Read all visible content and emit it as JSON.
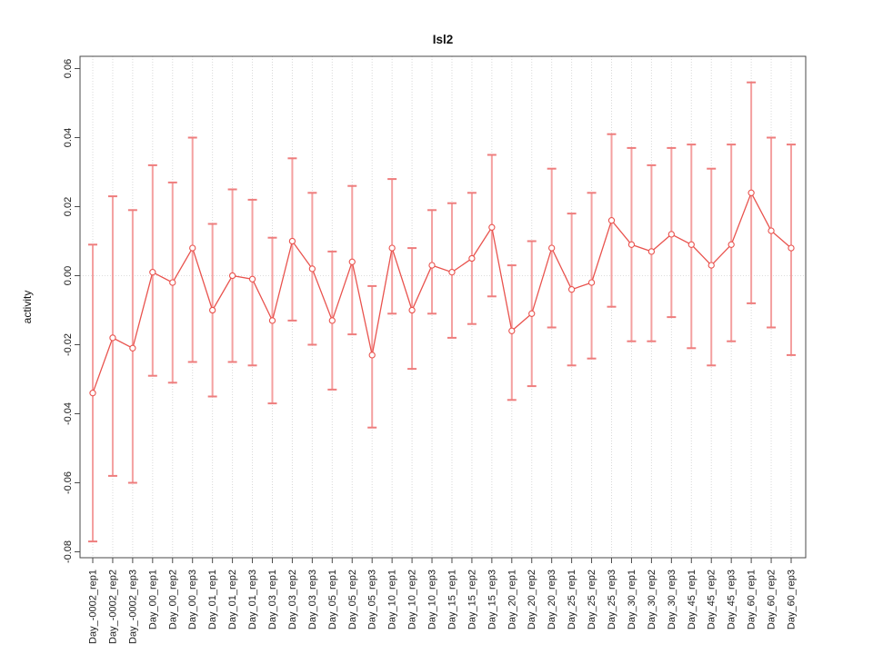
{
  "figure": {
    "title": "Isl2",
    "y_axis_label": "activity"
  },
  "chart_data": {
    "type": "scatter",
    "subtype": "points-with-error-bars-and-connecting-line",
    "title": "Isl2",
    "xlabel": "",
    "ylabel": "activity",
    "ylim": [
      -0.08,
      0.06
    ],
    "ytick_labels": [
      "-0.08",
      "-0.06",
      "-0.04",
      "-0.02",
      "0.00",
      "0.02",
      "0.04",
      "0.06"
    ],
    "grid": "vertical dotted gridline at every category; dotted horizontal reference line at 0.00",
    "legend": "none",
    "categories": [
      "Day_-0002_rep1",
      "Day_-0002_rep2",
      "Day_-0002_rep3",
      "Day_00_rep1",
      "Day_00_rep2",
      "Day_00_rep3",
      "Day_01_rep1",
      "Day_01_rep2",
      "Day_01_rep3",
      "Day_03_rep1",
      "Day_03_rep2",
      "Day_03_rep3",
      "Day_05_rep1",
      "Day_05_rep2",
      "Day_05_rep3",
      "Day_10_rep1",
      "Day_10_rep2",
      "Day_10_rep3",
      "Day_15_rep1",
      "Day_15_rep2",
      "Day_15_rep3",
      "Day_20_rep1",
      "Day_20_rep2",
      "Day_20_rep3",
      "Day_25_rep1",
      "Day_25_rep2",
      "Day_25_rep3",
      "Day_30_rep1",
      "Day_30_rep2",
      "Day_30_rep3",
      "Day_45_rep1",
      "Day_45_rep2",
      "Day_45_rep3",
      "Day_60_rep1",
      "Day_60_rep2",
      "Day_60_rep3"
    ],
    "series": [
      {
        "name": "activity",
        "values": [
          -0.034,
          -0.018,
          -0.021,
          0.001,
          -0.002,
          0.008,
          -0.01,
          0.0,
          -0.001,
          -0.013,
          0.01,
          0.002,
          -0.013,
          0.004,
          -0.023,
          0.008,
          -0.01,
          0.003,
          0.001,
          0.005,
          0.014,
          -0.016,
          -0.011,
          0.008,
          -0.004,
          -0.002,
          0.016,
          0.009,
          0.007,
          0.012,
          0.009,
          0.003,
          0.009,
          0.024,
          0.013,
          0.008
        ],
        "upper": [
          0.009,
          0.023,
          0.019,
          0.032,
          0.027,
          0.04,
          0.015,
          0.025,
          0.022,
          0.011,
          0.034,
          0.024,
          0.007,
          0.026,
          -0.003,
          0.028,
          0.008,
          0.019,
          0.021,
          0.024,
          0.035,
          0.003,
          0.01,
          0.031,
          0.018,
          0.024,
          0.041,
          0.037,
          0.032,
          0.037,
          0.038,
          0.031,
          0.038,
          0.056,
          0.04,
          0.038
        ],
        "lower": [
          -0.077,
          -0.058,
          -0.06,
          -0.029,
          -0.031,
          -0.025,
          -0.035,
          -0.025,
          -0.026,
          -0.037,
          -0.013,
          -0.02,
          -0.033,
          -0.017,
          -0.044,
          -0.011,
          -0.027,
          -0.011,
          -0.018,
          -0.014,
          -0.006,
          -0.036,
          -0.032,
          -0.015,
          -0.026,
          -0.024,
          -0.009,
          -0.019,
          -0.019,
          -0.012,
          -0.021,
          -0.026,
          -0.019,
          -0.008,
          -0.015,
          -0.023
        ]
      }
    ],
    "colors": {
      "point_and_line": "#e9534e",
      "error_bar_shaft": "#f4a0a0",
      "error_bar_cap": "#ee7d7d",
      "gridline": "#d8d8d8",
      "zero_line": "#dcdcdc",
      "axis_box": "#4a4a4a",
      "text": "#1a1a1a",
      "background": "#ffffff"
    }
  }
}
